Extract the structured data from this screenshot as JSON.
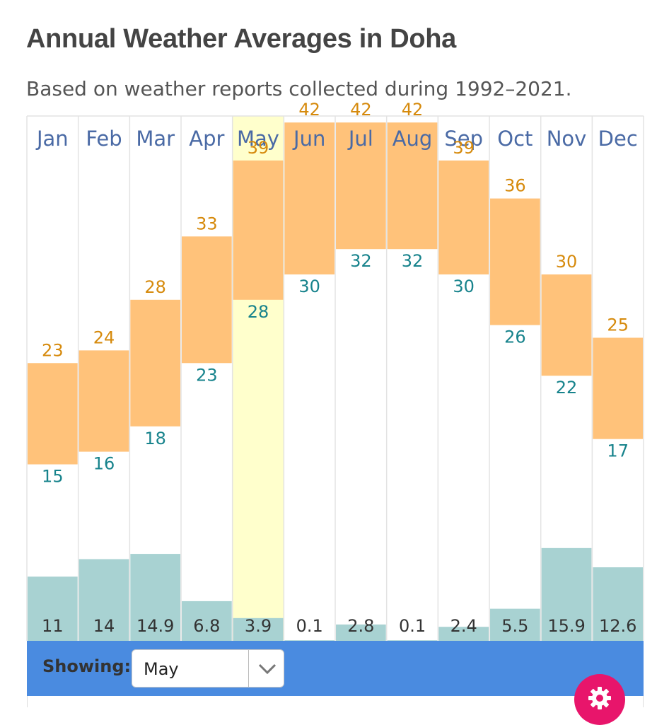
{
  "page": {
    "title": "Annual Weather Averages in Doha",
    "subtitle": "Based on weather reports collected during 1992–2021."
  },
  "chart_data": {
    "type": "bar",
    "categories": [
      "Jan",
      "Feb",
      "Mar",
      "Apr",
      "May",
      "Jun",
      "Jul",
      "Aug",
      "Sep",
      "Oct",
      "Nov",
      "Dec"
    ],
    "series": [
      {
        "values": [
          23,
          24,
          28,
          33,
          39,
          42,
          42,
          42,
          39,
          36,
          30,
          25
        ]
      },
      {
        "values": [
          15,
          16,
          18,
          23,
          28,
          30,
          32,
          32,
          30,
          26,
          22,
          17
        ]
      },
      {
        "values": [
          11,
          14,
          14.9,
          6.8,
          3.9,
          0.1,
          2.8,
          0.1,
          2.4,
          5.5,
          15.9,
          12.6
        ]
      }
    ],
    "selected_category": "May",
    "colors": {
      "temperature_range": "#ffc27a",
      "high_label": "#d68a0c",
      "low_label": "#17838c",
      "precipitation": "#a8d2d2",
      "selected_highlight": "#ffffcc",
      "month_label": "#4a6aa5"
    }
  },
  "controls": {
    "showing_label": "Showing:",
    "selected_value": "May",
    "dropdown_icon": "chevron-down-icon",
    "settings_icon": "gear-icon",
    "bar_color": "#4a8be0",
    "settings_color": "#e8156b"
  }
}
